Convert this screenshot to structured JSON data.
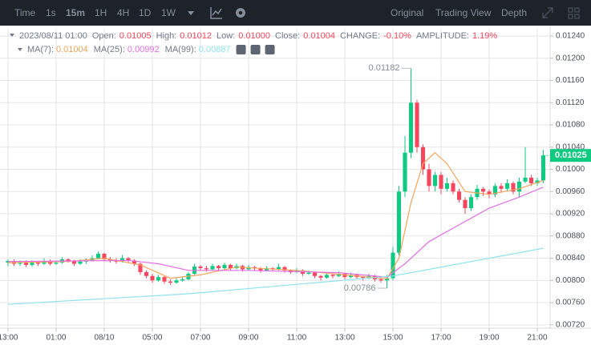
{
  "toolbar": {
    "intervals": [
      "Time",
      "1s",
      "15m",
      "1H",
      "4H",
      "1D",
      "1W"
    ],
    "active_interval_index": 2,
    "views": [
      "Original",
      "Trading View",
      "Depth"
    ],
    "active_view_index": 0
  },
  "chart_data": {
    "type": "candlestick",
    "info": [
      {
        "label": "Open:",
        "value": "0.01005"
      },
      {
        "label": "High:",
        "value": "0.01012"
      },
      {
        "label": "Low:",
        "value": "0.01000"
      },
      {
        "label": "Close:",
        "value": "0.01004"
      },
      {
        "label": "CHANGE:",
        "value": "-0.10%"
      },
      {
        "label": "AMPLITUDE:",
        "value": "1.19%"
      }
    ],
    "date": "2023/08/11 01:00",
    "up_color": "#0ecb81",
    "down_color": "#f6465d",
    "ohlc": [
      [
        0.00832,
        0.00838,
        0.00826,
        0.00835
      ],
      [
        0.00835,
        0.00838,
        0.00826,
        0.0083
      ],
      [
        0.0083,
        0.00836,
        0.00826,
        0.00832
      ],
      [
        0.00832,
        0.00836,
        0.00824,
        0.00828
      ],
      [
        0.00828,
        0.00836,
        0.00825,
        0.00832
      ],
      [
        0.00832,
        0.00835,
        0.00826,
        0.0083
      ],
      [
        0.0083,
        0.0084,
        0.00828,
        0.00835
      ],
      [
        0.00835,
        0.00838,
        0.00827,
        0.0083
      ],
      [
        0.0083,
        0.00836,
        0.00828,
        0.00832
      ],
      [
        0.00832,
        0.00842,
        0.0083,
        0.00838
      ],
      [
        0.00838,
        0.0084,
        0.00832,
        0.00835
      ],
      [
        0.00835,
        0.00837,
        0.00826,
        0.0083
      ],
      [
        0.0083,
        0.00838,
        0.00828,
        0.00834
      ],
      [
        0.00834,
        0.0084,
        0.0083,
        0.00836
      ],
      [
        0.00836,
        0.00845,
        0.00834,
        0.0084
      ],
      [
        0.0084,
        0.00852,
        0.00838,
        0.00848
      ],
      [
        0.00848,
        0.0085,
        0.00834,
        0.00838
      ],
      [
        0.00838,
        0.00842,
        0.00832,
        0.00836
      ],
      [
        0.00836,
        0.0084,
        0.0083,
        0.00834
      ],
      [
        0.00834,
        0.00846,
        0.00832,
        0.0084
      ],
      [
        0.0084,
        0.00842,
        0.00832,
        0.00836
      ],
      [
        0.00836,
        0.00838,
        0.00826,
        0.0083
      ],
      [
        0.0083,
        0.00832,
        0.0081,
        0.00815
      ],
      [
        0.00815,
        0.00818,
        0.00804,
        0.00808
      ],
      [
        0.00808,
        0.00812,
        0.00796,
        0.008
      ],
      [
        0.008,
        0.0081,
        0.00798,
        0.00806
      ],
      [
        0.00806,
        0.00808,
        0.00794,
        0.00798
      ],
      [
        0.00798,
        0.00802,
        0.00792,
        0.00796
      ],
      [
        0.00796,
        0.00804,
        0.00794,
        0.008
      ],
      [
        0.008,
        0.00806,
        0.00798,
        0.00802
      ],
      [
        0.00802,
        0.00815,
        0.008,
        0.00812
      ],
      [
        0.00812,
        0.0083,
        0.0081,
        0.00825
      ],
      [
        0.00825,
        0.00828,
        0.00818,
        0.00822
      ],
      [
        0.00822,
        0.00826,
        0.00816,
        0.0082
      ],
      [
        0.0082,
        0.0083,
        0.00818,
        0.00826
      ],
      [
        0.00826,
        0.00828,
        0.00818,
        0.00822
      ],
      [
        0.00822,
        0.00832,
        0.0082,
        0.00828
      ],
      [
        0.00828,
        0.0083,
        0.00818,
        0.00822
      ],
      [
        0.00822,
        0.0083,
        0.0082,
        0.00826
      ],
      [
        0.00826,
        0.00828,
        0.00816,
        0.0082
      ],
      [
        0.0082,
        0.00828,
        0.00818,
        0.00824
      ],
      [
        0.00824,
        0.00826,
        0.00818,
        0.00822
      ],
      [
        0.00822,
        0.00824,
        0.00814,
        0.00818
      ],
      [
        0.00818,
        0.00826,
        0.00816,
        0.00822
      ],
      [
        0.00822,
        0.00824,
        0.00816,
        0.0082
      ],
      [
        0.0082,
        0.0083,
        0.00818,
        0.00824
      ],
      [
        0.00824,
        0.00826,
        0.00814,
        0.00818
      ],
      [
        0.00818,
        0.0082,
        0.00812,
        0.00815
      ],
      [
        0.00815,
        0.00822,
        0.00813,
        0.00818
      ],
      [
        0.00818,
        0.0082,
        0.00808,
        0.00812
      ],
      [
        0.00812,
        0.00818,
        0.0081,
        0.00814
      ],
      [
        0.00814,
        0.00816,
        0.00804,
        0.00808
      ],
      [
        0.00808,
        0.0081,
        0.008,
        0.00805
      ],
      [
        0.00805,
        0.00814,
        0.00803,
        0.0081
      ],
      [
        0.0081,
        0.00812,
        0.00804,
        0.00808
      ],
      [
        0.00808,
        0.00816,
        0.00806,
        0.00812
      ],
      [
        0.00812,
        0.00814,
        0.00802,
        0.00806
      ],
      [
        0.00806,
        0.00814,
        0.00804,
        0.0081
      ],
      [
        0.0081,
        0.00812,
        0.00802,
        0.00806
      ],
      [
        0.00806,
        0.00808,
        0.008,
        0.00805
      ],
      [
        0.00805,
        0.00812,
        0.00802,
        0.00808
      ],
      [
        0.00808,
        0.0081,
        0.00798,
        0.00802
      ],
      [
        0.00802,
        0.00806,
        0.00796,
        0.008
      ],
      [
        0.008,
        0.0081,
        0.00786,
        0.00804
      ],
      [
        0.00804,
        0.0086,
        0.008,
        0.0085
      ],
      [
        0.0085,
        0.0097,
        0.00845,
        0.0096
      ],
      [
        0.0096,
        0.0106,
        0.0095,
        0.0103
      ],
      [
        0.0103,
        0.01182,
        0.0102,
        0.0112
      ],
      [
        0.0112,
        0.01125,
        0.0103,
        0.0104
      ],
      [
        0.0104,
        0.01045,
        0.0099,
        0.01
      ],
      [
        0.01,
        0.0101,
        0.0096,
        0.0097
      ],
      [
        0.0097,
        0.00995,
        0.0096,
        0.0099
      ],
      [
        0.0099,
        0.00995,
        0.00955,
        0.00965
      ],
      [
        0.00965,
        0.00985,
        0.0096,
        0.00975
      ],
      [
        0.00975,
        0.0098,
        0.00955,
        0.0096
      ],
      [
        0.0096,
        0.00965,
        0.0094,
        0.00945
      ],
      [
        0.00945,
        0.0095,
        0.0092,
        0.0093
      ],
      [
        0.0093,
        0.00955,
        0.00925,
        0.0095
      ],
      [
        0.0095,
        0.00972,
        0.00945,
        0.00965
      ],
      [
        0.00965,
        0.00968,
        0.00952,
        0.0096
      ],
      [
        0.0096,
        0.00964,
        0.00948,
        0.00955
      ],
      [
        0.00955,
        0.00975,
        0.0095,
        0.0097
      ],
      [
        0.0097,
        0.00975,
        0.00958,
        0.00965
      ],
      [
        0.00965,
        0.00982,
        0.0096,
        0.00975
      ],
      [
        0.00975,
        0.00978,
        0.00955,
        0.0096
      ],
      [
        0.0096,
        0.00985,
        0.0095,
        0.00978
      ],
      [
        0.00978,
        0.0104,
        0.00975,
        0.00985
      ],
      [
        0.00985,
        0.0099,
        0.0097,
        0.00975
      ],
      [
        0.00975,
        0.00985,
        0.0097,
        0.0098
      ],
      [
        0.0098,
        0.01035,
        0.00975,
        0.01025
      ]
    ],
    "series": [
      {
        "name": "MA(7):",
        "legend_value": "0.01004",
        "color": "#f5a45d",
        "x": [
          0,
          10,
          16,
          22,
          27,
          32,
          38,
          48,
          56,
          63,
          65,
          67,
          69,
          71,
          73,
          76,
          80,
          85,
          89
        ],
        "values": [
          0.00832,
          0.00834,
          0.0084,
          0.00828,
          0.00804,
          0.0081,
          0.00824,
          0.00818,
          0.0081,
          0.00803,
          0.0084,
          0.0094,
          0.0101,
          0.0103,
          0.0101,
          0.0096,
          0.00955,
          0.00965,
          0.0098
        ]
      },
      {
        "name": "MA(25):",
        "legend_value": "0.00992",
        "color": "#e46ee6",
        "x": [
          0,
          20,
          25,
          30,
          40,
          55,
          63,
          66,
          70,
          75,
          80,
          85,
          89
        ],
        "values": [
          0.00834,
          0.00836,
          0.0083,
          0.00818,
          0.00818,
          0.00814,
          0.00806,
          0.0083,
          0.0087,
          0.009,
          0.0093,
          0.0095,
          0.00968
        ]
      },
      {
        "name": "MA(99):",
        "legend_value": "0.00887",
        "color": "#8fe3ef",
        "x": [
          0,
          30,
          64,
          89
        ],
        "values": [
          0.00757,
          0.00776,
          0.00808,
          0.00858
        ]
      }
    ],
    "annotations": [
      {
        "x": 67,
        "value": 0.01182,
        "label": "0.01182"
      },
      {
        "x": 63,
        "value": 0.00786,
        "label": "0.00786"
      }
    ],
    "last_price": {
      "value": 0.01025,
      "label": "0.01025"
    },
    "xlim": [
      -1.33,
      90.13
    ],
    "xticks": [
      {
        "value": 0,
        "label": "13:00"
      },
      {
        "value": 8,
        "label": "01:00"
      },
      {
        "value": 16,
        "label": "08/10"
      },
      {
        "value": 24,
        "label": "05:00"
      },
      {
        "value": 32,
        "label": "07:00"
      },
      {
        "value": 40,
        "label": "09:00"
      },
      {
        "value": 48,
        "label": "11:00"
      },
      {
        "value": 56,
        "label": "13:00"
      },
      {
        "value": 64,
        "label": "15:00"
      },
      {
        "value": 72,
        "label": "17:00"
      },
      {
        "value": 80,
        "label": "19:00"
      },
      {
        "value": 88,
        "label": "21:00"
      }
    ],
    "ylim": [
      0.00714,
      0.01253
    ],
    "yticks": [
      {
        "value": 0.0124,
        "label": "0.01240"
      },
      {
        "value": 0.012,
        "label": "0.01200"
      },
      {
        "value": 0.0116,
        "label": "0.01160"
      },
      {
        "value": 0.0112,
        "label": "0.01120"
      },
      {
        "value": 0.0108,
        "label": "0.01080"
      },
      {
        "value": 0.0104,
        "label": "0.01040"
      },
      {
        "value": 0.01,
        "label": "0.01000"
      },
      {
        "value": 0.0096,
        "label": "0.00960"
      },
      {
        "value": 0.0092,
        "label": "0.00920"
      },
      {
        "value": 0.0088,
        "label": "0.00880"
      },
      {
        "value": 0.0084,
        "label": "0.00840"
      },
      {
        "value": 0.008,
        "label": "0.00800"
      },
      {
        "value": 0.0076,
        "label": "0.00760"
      },
      {
        "value": 0.0072,
        "label": "0.00720"
      }
    ],
    "grid": true
  }
}
